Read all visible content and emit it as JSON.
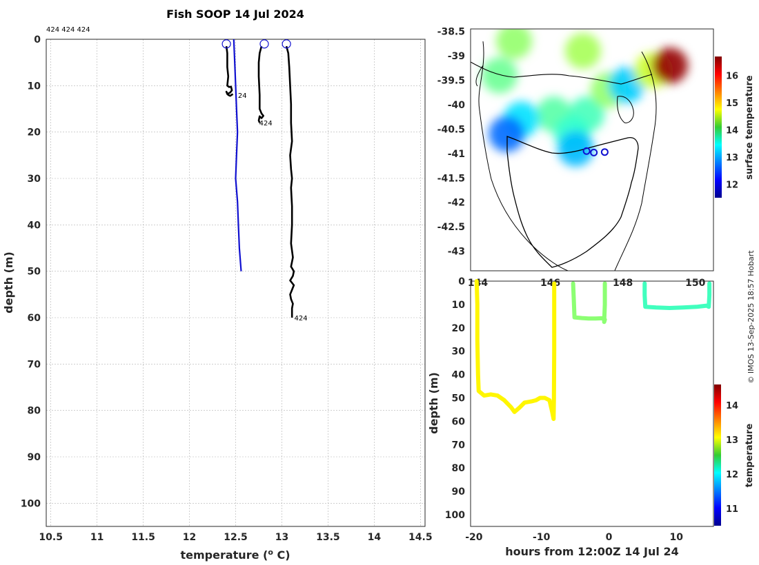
{
  "chart_data": [
    {
      "type": "line",
      "title": "Fish SOOP 14 Jul 2024",
      "header_label": "424 424 424",
      "xlabel": "temperature (",
      "xlabel_sup": "o",
      "xlabel_unit": " C)",
      "ylabel": "depth (m)",
      "xlim": [
        10.45,
        14.55
      ],
      "ylim": [
        0,
        105
      ],
      "y_inverted": true,
      "grid": true,
      "xticks": [
        10.5,
        11,
        11.5,
        12,
        12.5,
        13,
        13.5,
        14,
        14.5
      ],
      "xtick_labels": [
        "10.5",
        "11",
        "11.5",
        "12",
        "12.5",
        "13",
        "13.5",
        "14",
        "14.5"
      ],
      "yticks": [
        0,
        10,
        20,
        30,
        40,
        50,
        60,
        70,
        80,
        90,
        100
      ],
      "ytick_labels": [
        "0",
        "10",
        "20",
        "30",
        "40",
        "50",
        "60",
        "70",
        "80",
        "90",
        "100"
      ],
      "series": [
        {
          "name": "climatology",
          "color": "#1010d0",
          "points": [
            [
              12.48,
              0
            ],
            [
              12.49,
              5
            ],
            [
              12.5,
              10
            ],
            [
              12.51,
              15
            ],
            [
              12.52,
              20
            ],
            [
              12.51,
              25
            ],
            [
              12.5,
              30
            ],
            [
              12.52,
              35
            ],
            [
              12.53,
              40
            ],
            [
              12.54,
              45
            ],
            [
              12.56,
              50
            ]
          ]
        },
        {
          "name": "profile 1",
          "color": "#000000",
          "label": "24",
          "points": [
            [
              12.4,
              1.5
            ],
            [
              12.41,
              3
            ],
            [
              12.41,
              6
            ],
            [
              12.42,
              8
            ],
            [
              12.41,
              10
            ],
            [
              12.43,
              10.3
            ],
            [
              12.45,
              10.2
            ],
            [
              12.46,
              11
            ],
            [
              12.44,
              11.5
            ],
            [
              12.41,
              11.8
            ],
            [
              12.4,
              11.3
            ],
            [
              12.42,
              12
            ],
            [
              12.44,
              12.2
            ],
            [
              12.47,
              11.8
            ]
          ]
        },
        {
          "name": "profile 2",
          "color": "#000000",
          "label": "424",
          "points": [
            [
              12.78,
              1.5
            ],
            [
              12.76,
              3
            ],
            [
              12.75,
              5
            ],
            [
              12.75,
              8
            ],
            [
              12.76,
              12
            ],
            [
              12.76,
              15
            ],
            [
              12.78,
              16
            ],
            [
              12.8,
              16.5
            ],
            [
              12.78,
              17
            ],
            [
              12.76,
              16.6
            ],
            [
              12.75,
              17.5
            ],
            [
              12.76,
              18
            ]
          ]
        },
        {
          "name": "profile 3",
          "color": "#000000",
          "label": "424",
          "points": [
            [
              13.05,
              1.5
            ],
            [
              13.07,
              3
            ],
            [
              13.08,
              6
            ],
            [
              13.09,
              10
            ],
            [
              13.1,
              14
            ],
            [
              13.1,
              18
            ],
            [
              13.11,
              22
            ],
            [
              13.09,
              25
            ],
            [
              13.1,
              28
            ],
            [
              13.11,
              30
            ],
            [
              13.1,
              32
            ],
            [
              13.11,
              36
            ],
            [
              13.11,
              40
            ],
            [
              13.1,
              44
            ],
            [
              13.12,
              47
            ],
            [
              13.1,
              49
            ],
            [
              13.13,
              50
            ],
            [
              13.12,
              51
            ],
            [
              13.09,
              52
            ],
            [
              13.13,
              53
            ],
            [
              13.11,
              54
            ],
            [
              13.09,
              55
            ],
            [
              13.1,
              56
            ],
            [
              13.12,
              57
            ],
            [
              13.11,
              58
            ],
            [
              13.11,
              60
            ]
          ]
        }
      ],
      "profile_markers": [
        {
          "name": "marker 1",
          "x": 12.4,
          "y": 1
        },
        {
          "name": "marker 2",
          "x": 12.81,
          "y": 1
        },
        {
          "name": "marker 3",
          "x": 13.05,
          "y": 1
        }
      ],
      "annotations": [
        {
          "name": "label 1",
          "text": "24",
          "x": 12.51,
          "y": 12
        },
        {
          "name": "label 2",
          "text": "424",
          "x": 12.74,
          "y": 18
        },
        {
          "name": "label 3",
          "text": "424",
          "x": 13.12,
          "y": 60
        }
      ]
    },
    {
      "type": "heatmap",
      "description": "map",
      "xlim": [
        143.8,
        150.5
      ],
      "ylim": [
        -43.4,
        -38.45
      ],
      "xticks": [
        144,
        146,
        148,
        150
      ],
      "xtick_labels": [
        "144",
        "146",
        "148",
        "150"
      ],
      "yticks": [
        -38.5,
        -39,
        -39.5,
        -40,
        -40.5,
        -41,
        -41.5,
        -42,
        -42.5,
        -43
      ],
      "ytick_labels": [
        "-38.5",
        "-39",
        "-39.5",
        "-40",
        "-40.5",
        "-41",
        "-41.5",
        "-42",
        "-42.5",
        "-43"
      ],
      "colorbar_label": "surface temperature",
      "colorbar_range": [
        11.5,
        16.7
      ],
      "colorbar_ticks": [
        12,
        13,
        14,
        15,
        16
      ],
      "colorbar_tick_labels": [
        "12",
        "13",
        "14",
        "15",
        "16"
      ],
      "sst_blobs": [
        {
          "lon": 146.1,
          "lat": -40.2,
          "value": 13.9
        },
        {
          "lon": 147.0,
          "lat": -40.2,
          "value": 13.8
        },
        {
          "lon": 146.6,
          "lat": -40.6,
          "value": 13.7
        },
        {
          "lon": 145.2,
          "lat": -40.3,
          "value": 13.3
        },
        {
          "lon": 144.8,
          "lat": -40.6,
          "value": 12.7
        },
        {
          "lon": 147.6,
          "lat": -39.7,
          "value": 14.2
        },
        {
          "lon": 144.6,
          "lat": -39.4,
          "value": 14.0
        },
        {
          "lon": 145.0,
          "lat": -38.7,
          "value": 14.2
        },
        {
          "lon": 146.9,
          "lat": -38.9,
          "value": 14.3
        },
        {
          "lon": 148.1,
          "lat": -39.6,
          "value": 13.2
        },
        {
          "lon": 148.8,
          "lat": -39.3,
          "value": 14.5
        },
        {
          "lon": 149.3,
          "lat": -39.2,
          "value": 16.6
        },
        {
          "lon": 146.7,
          "lat": -40.9,
          "value": 13.1
        }
      ],
      "stations": [
        {
          "name": "station 1",
          "lon": 147.0,
          "lat": -40.95
        },
        {
          "name": "station 2",
          "lon": 147.2,
          "lat": -40.98
        },
        {
          "name": "station 3",
          "lon": 147.5,
          "lat": -40.97
        }
      ]
    },
    {
      "type": "scatter",
      "xlabel": "hours from 12:00Z 14 Jul 24",
      "ylabel": "depth (m)",
      "xlim": [
        -20.5,
        15.5
      ],
      "ylim": [
        0,
        105
      ],
      "y_inverted": true,
      "xticks": [
        -20,
        -10,
        0,
        10
      ],
      "xtick_labels": [
        "-20",
        "-10",
        "0",
        "10"
      ],
      "yticks": [
        0,
        10,
        20,
        30,
        40,
        50,
        60,
        70,
        80,
        90,
        100
      ],
      "ytick_labels": [
        "0",
        "10",
        "20",
        "30",
        "40",
        "50",
        "60",
        "70",
        "80",
        "90",
        "100"
      ],
      "colorbar_label": "temperature",
      "colorbar_range": [
        10.5,
        14.6
      ],
      "colorbar_ticks": [
        11,
        12,
        13,
        14
      ],
      "colorbar_tick_labels": [
        "11",
        "12",
        "13",
        "14"
      ],
      "series": [
        {
          "name": "deployment 1",
          "temperature": 13.1,
          "points": [
            [
              -19.6,
              0
            ],
            [
              -19.5,
              10
            ],
            [
              -19.5,
              25
            ],
            [
              -19.4,
              40
            ],
            [
              -19.3,
              47
            ],
            [
              -18.5,
              49
            ],
            [
              -17.5,
              48.5
            ],
            [
              -16.5,
              49
            ],
            [
              -15.5,
              51
            ],
            [
              -14.5,
              54
            ],
            [
              -14.0,
              56
            ],
            [
              -13.2,
              54
            ],
            [
              -12.5,
              52
            ],
            [
              -11.5,
              51.5
            ],
            [
              -10.8,
              51
            ],
            [
              -10.2,
              50
            ],
            [
              -9.5,
              50
            ],
            [
              -8.8,
              51
            ],
            [
              -8.4,
              56
            ],
            [
              -8.2,
              59
            ],
            [
              -8.15,
              50
            ],
            [
              -8.1,
              30
            ],
            [
              -8.1,
              10
            ],
            [
              -8.1,
              1
            ]
          ]
        },
        {
          "name": "deployment 2",
          "temperature": 12.6,
          "points": [
            [
              -5.3,
              1
            ],
            [
              -5.2,
              8
            ],
            [
              -5.1,
              15.5
            ],
            [
              -4.0,
              15.8
            ],
            [
              -3.0,
              16
            ],
            [
              -2.0,
              16
            ],
            [
              -1.0,
              15.9
            ],
            [
              -0.6,
              16.5
            ],
            [
              -0.7,
              17.5
            ],
            [
              -0.6,
              10
            ],
            [
              -0.6,
              1
            ]
          ]
        },
        {
          "name": "deployment 3",
          "temperature": 12.3,
          "points": [
            [
              5.3,
              1
            ],
            [
              5.3,
              6
            ],
            [
              5.4,
              11
            ],
            [
              7.0,
              11.3
            ],
            [
              9.0,
              11.5
            ],
            [
              11.0,
              11.3
            ],
            [
              13.0,
              11
            ],
            [
              14.5,
              10.5
            ],
            [
              14.8,
              11
            ],
            [
              14.9,
              6
            ],
            [
              14.9,
              1
            ]
          ]
        }
      ]
    }
  ],
  "credit": "© IMOS 13-Sep-2025 18:57 Hobart",
  "colors": {
    "axis": "#262626",
    "grid": "#b0b0b0",
    "climatology": "#1010d0",
    "profile": "#000000"
  }
}
